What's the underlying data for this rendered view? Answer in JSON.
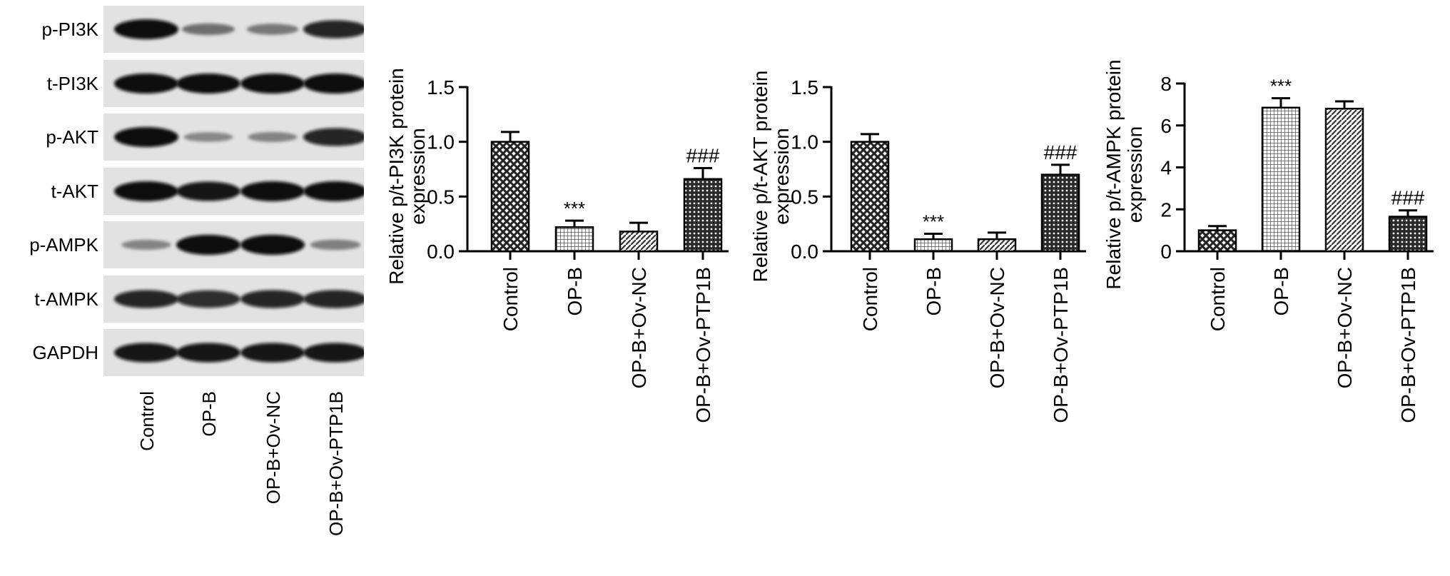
{
  "blot": {
    "rows": [
      {
        "label": "p-PI3K",
        "intensity": [
          1.0,
          0.35,
          0.3,
          0.85
        ]
      },
      {
        "label": "t-PI3K",
        "intensity": [
          1.0,
          1.0,
          1.0,
          1.0
        ]
      },
      {
        "label": "p-AKT",
        "intensity": [
          1.0,
          0.2,
          0.22,
          0.85
        ]
      },
      {
        "label": "t-AKT",
        "intensity": [
          1.0,
          0.95,
          1.0,
          1.0
        ]
      },
      {
        "label": "p-AMPK",
        "intensity": [
          0.22,
          1.0,
          1.0,
          0.25
        ]
      },
      {
        "label": "t-AMPK",
        "intensity": [
          0.85,
          0.8,
          0.85,
          0.85
        ]
      },
      {
        "label": "GAPDH",
        "intensity": [
          0.95,
          0.95,
          0.95,
          0.95
        ]
      }
    ],
    "lanes": [
      "Control",
      "OP-B",
      "OP-B+Ov-NC",
      "OP-B+Ov-PTP1B"
    ]
  },
  "chart_data": [
    {
      "type": "bar",
      "categories": [
        "Control",
        "OP-B",
        "OP-B+Ov-NC",
        "OP-B+Ov-PTP1B"
      ],
      "values": [
        1.0,
        0.22,
        0.18,
        0.66
      ],
      "errors": [
        0.09,
        0.06,
        0.08,
        0.1
      ],
      "annotations": [
        "",
        "***",
        "",
        "###"
      ],
      "ylabel": "Relative p/t-PI3K protein expression",
      "ylim": [
        0,
        1.5
      ],
      "yticks": [
        "0.0",
        "0.5",
        "1.0",
        "1.5"
      ],
      "ytick_values": [
        0,
        0.5,
        1.0,
        1.5
      ]
    },
    {
      "type": "bar",
      "categories": [
        "Control",
        "OP-B",
        "OP-B+Ov-NC",
        "OP-B+Ov-PTP1B"
      ],
      "values": [
        1.0,
        0.11,
        0.11,
        0.7
      ],
      "errors": [
        0.07,
        0.05,
        0.06,
        0.09
      ],
      "annotations": [
        "",
        "***",
        "",
        "###"
      ],
      "ylabel": "Relative p/t-AKT protein expression",
      "ylim": [
        0,
        1.5
      ],
      "yticks": [
        "0.0",
        "0.5",
        "1.0",
        "1.5"
      ],
      "ytick_values": [
        0,
        0.5,
        1.0,
        1.5
      ]
    },
    {
      "type": "bar",
      "categories": [
        "Control",
        "OP-B",
        "OP-B+Ov-NC",
        "OP-B+Ov-PTP1B"
      ],
      "values": [
        1.0,
        6.85,
        6.8,
        1.65
      ],
      "errors": [
        0.2,
        0.45,
        0.35,
        0.3
      ],
      "annotations": [
        "",
        "***",
        "",
        "###"
      ],
      "ylabel": "Relative p/t-AMPK protein expression",
      "ylim": [
        0,
        8
      ],
      "yticks": [
        "0",
        "2",
        "4",
        "6",
        "8"
      ],
      "ytick_values": [
        0,
        2,
        4,
        6,
        8
      ]
    }
  ]
}
